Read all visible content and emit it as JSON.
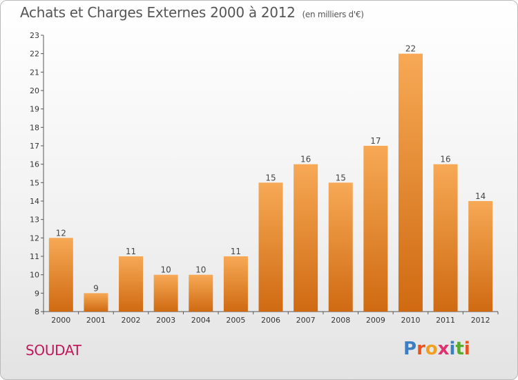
{
  "header": {
    "title": "Achats et Charges Externes 2000 à 2012",
    "subtitle": "(en milliers d'€)"
  },
  "footer": {
    "commune": "SOUDAT",
    "logo_letters": [
      "P",
      "r",
      "o",
      "x",
      "i",
      "t",
      "i"
    ],
    "logo_colors": [
      "#3a7fc2",
      "#e8541f",
      "#f0a020",
      "#e03070",
      "#3a7fc2",
      "#5aaa30",
      "#e8541f"
    ]
  },
  "colors": {
    "bar_top": "#f7a955",
    "bar_bottom": "#cf6a12",
    "axis": "#555555"
  },
  "chart_data": {
    "type": "bar",
    "title": "Achats et Charges Externes 2000 à 2012",
    "subtitle": "(en milliers d'€)",
    "categories": [
      "2000",
      "2001",
      "2002",
      "2003",
      "2004",
      "2005",
      "2006",
      "2007",
      "2008",
      "2009",
      "2010",
      "2011",
      "2012"
    ],
    "values": [
      12,
      9,
      11,
      10,
      10,
      11,
      15,
      16,
      15,
      17,
      22,
      16,
      14
    ],
    "ylim": [
      8,
      23
    ],
    "yticks": [
      8,
      9,
      10,
      11,
      12,
      13,
      14,
      15,
      16,
      17,
      18,
      19,
      20,
      21,
      22,
      23
    ],
    "grid": false,
    "legend": "none"
  }
}
